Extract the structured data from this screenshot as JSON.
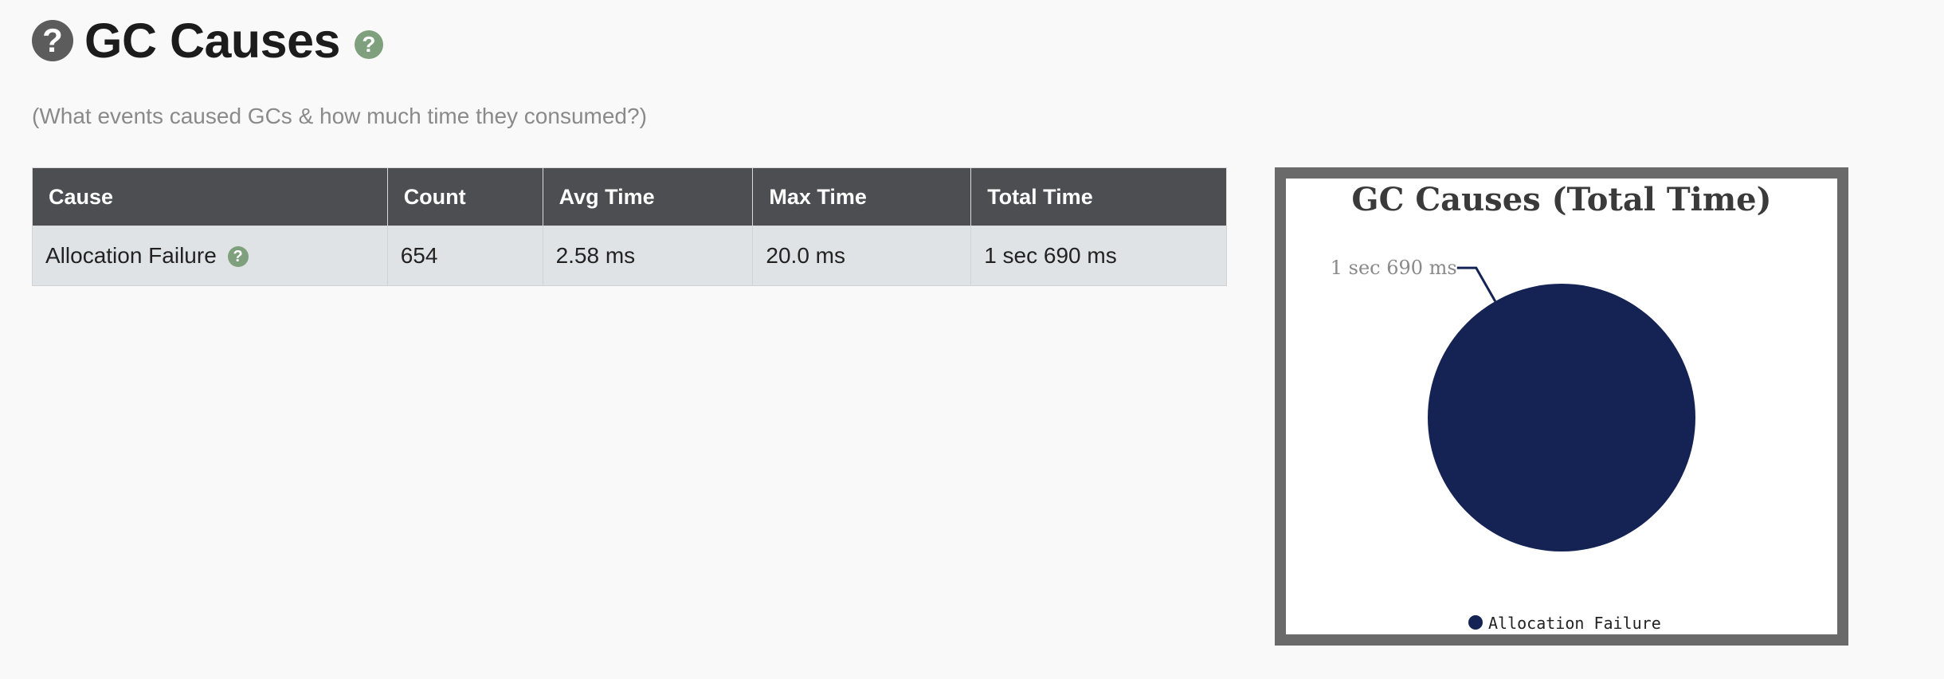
{
  "header": {
    "title": "GC Causes",
    "subtitle": "(What events caused GCs & how much time they consumed?)"
  },
  "icons": {
    "help_big": "question-circle-icon",
    "help_small": "question-circle-icon",
    "help_glyph": "?"
  },
  "colors": {
    "header_bg": "#4d4e52",
    "row_bg": "#dfe3e5",
    "help_green": "#7fa07d",
    "pie_navy": "#142353",
    "frame_gray": "#6a6a6a"
  },
  "table": {
    "columns": [
      "Cause",
      "Count",
      "Avg Time",
      "Max Time",
      "Total Time"
    ],
    "rows": [
      {
        "cause": "Allocation Failure",
        "count": "654",
        "avg_time": "2.58 ms",
        "max_time": "20.0 ms",
        "total_time": "1 sec 690 ms"
      }
    ]
  },
  "chart_data": {
    "type": "pie",
    "title": "GC Causes (Total Time)",
    "categories": [
      "Allocation Failure"
    ],
    "values": [
      1690
    ],
    "data_labels": [
      "1 sec 690 ms"
    ],
    "colors": [
      "#142353"
    ],
    "legend": "bottom-center"
  }
}
